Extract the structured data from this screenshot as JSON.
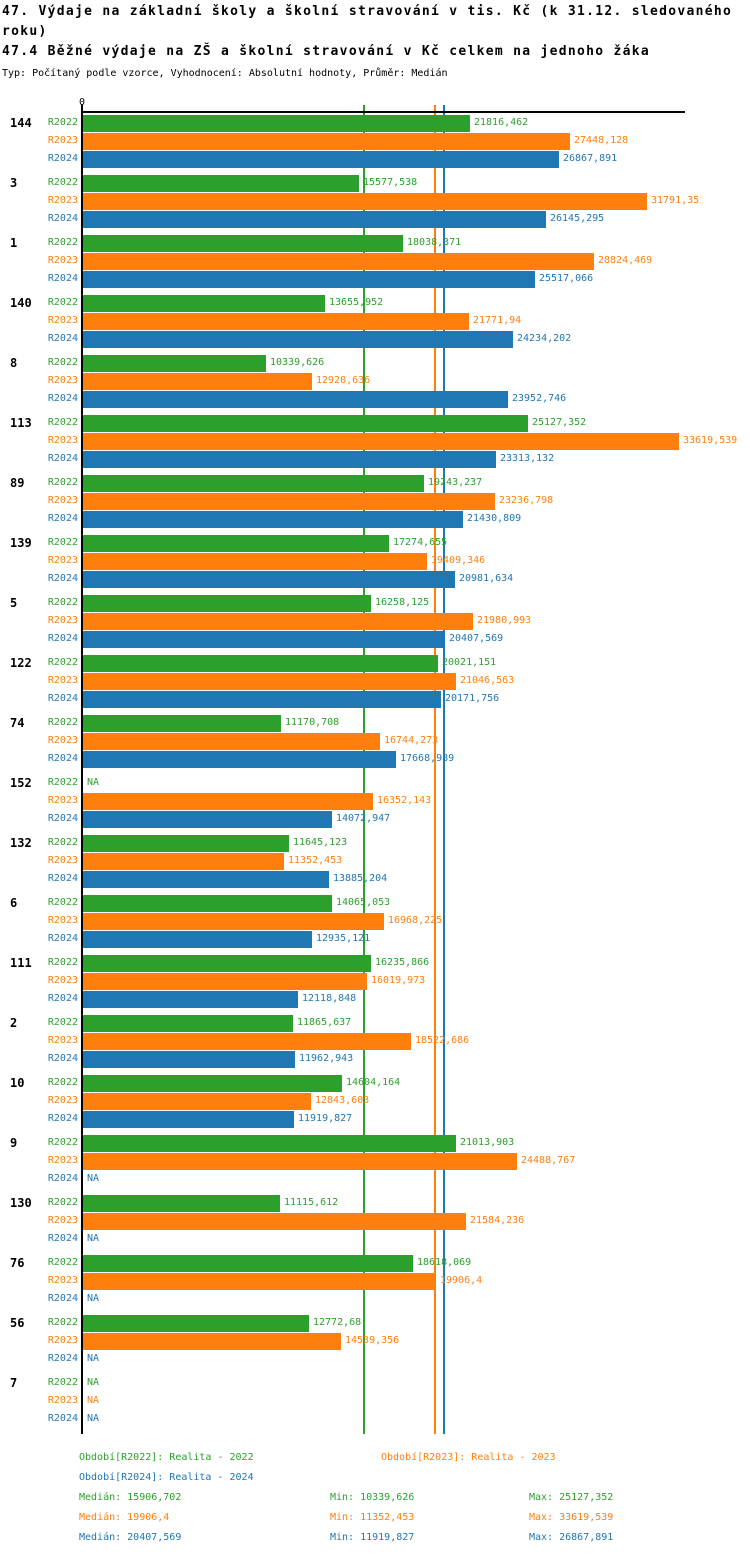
{
  "chart_data": {
    "type": "bar",
    "orientation": "horizontal",
    "title": "47. Výdaje na základní školy a školní stravování v tis. Kč (k 31.12. sledovaného roku)",
    "subtitle": "47.4 Běžné výdaje na ZŠ a školní stravování v Kč celkem na jednoho žáka",
    "meta": "Typ: Počítaný podle vzorce, Vyhodnocení: Absolutní hodnoty, Průměr: Medián",
    "na_text": "NA",
    "x_axis": {
      "zero_label": "0",
      "min": 0,
      "max": 33619.539,
      "grid": false
    },
    "legend_position": "bottom",
    "series": [
      {
        "name": "R2022",
        "color": "#2ca02c",
        "median": 15906.702,
        "min": 10339.626,
        "max": 25127.352
      },
      {
        "name": "R2023",
        "color": "#ff7f0e",
        "median": 19906.4,
        "min": 11352.453,
        "max": 33619.539
      },
      {
        "name": "R2024",
        "color": "#1f77b4",
        "median": 20407.569,
        "min": 11919.827,
        "max": 26867.891
      }
    ],
    "groups": [
      {
        "label": "144",
        "values": [
          "21816,462",
          "27448,128",
          "26867,891"
        ]
      },
      {
        "label": "3",
        "values": [
          "15577,538",
          "31791,35",
          "26145,295"
        ]
      },
      {
        "label": "1",
        "values": [
          "18038,371",
          "28824,469",
          "25517,066"
        ]
      },
      {
        "label": "140",
        "values": [
          "13655,952",
          "21771,94",
          "24234,202"
        ]
      },
      {
        "label": "8",
        "values": [
          "10339,626",
          "12920,636",
          "23952,746"
        ]
      },
      {
        "label": "113",
        "values": [
          "25127,352",
          "33619,539",
          "23313,132"
        ]
      },
      {
        "label": "89",
        "values": [
          "19243,237",
          "23236,798",
          "21430,809"
        ]
      },
      {
        "label": "139",
        "values": [
          "17274,655",
          "19409,346",
          "20981,634"
        ]
      },
      {
        "label": "5",
        "values": [
          "16258,125",
          "21980,993",
          "20407,569"
        ]
      },
      {
        "label": "122",
        "values": [
          "20021,151",
          "21046,563",
          "20171,756"
        ]
      },
      {
        "label": "74",
        "values": [
          "11170,708",
          "16744,273",
          "17668,989"
        ]
      },
      {
        "label": "152",
        "values": [
          "NA",
          "16352,143",
          "14072,947"
        ]
      },
      {
        "label": "132",
        "values": [
          "11645,123",
          "11352,453",
          "13885,204"
        ]
      },
      {
        "label": "6",
        "values": [
          "14065,053",
          "16968,225",
          "12935,121"
        ]
      },
      {
        "label": "111",
        "values": [
          "16235,866",
          "16019,973",
          "12118,848"
        ]
      },
      {
        "label": "2",
        "values": [
          "11865,637",
          "18522,686",
          "11962,943"
        ]
      },
      {
        "label": "10",
        "values": [
          "14604,164",
          "12843,603",
          "11919,827"
        ]
      },
      {
        "label": "9",
        "values": [
          "21013,903",
          "24488,767",
          "NA"
        ]
      },
      {
        "label": "130",
        "values": [
          "11115,612",
          "21584,236",
          "NA"
        ]
      },
      {
        "label": "76",
        "values": [
          "18618,069",
          "19906,4",
          "NA"
        ]
      },
      {
        "label": "56",
        "values": [
          "12772,68",
          "14539,356",
          "NA"
        ]
      },
      {
        "label": "7",
        "values": [
          "NA",
          "NA",
          "NA"
        ]
      }
    ]
  },
  "footer": {
    "legend": [
      {
        "label": "Období[R2022]: Realita - 2022"
      },
      {
        "label": "Období[R2023]: Realita - 2023"
      },
      {
        "label": "Období[R2024]: Realita - 2024"
      }
    ],
    "stats": [
      {
        "median": "Medián: 15906,702",
        "min": "Min: 10339,626",
        "max": "Max: 25127,352"
      },
      {
        "median": "Medián: 19906,4",
        "min": "Min: 11352,453",
        "max": "Max: 33619,539"
      },
      {
        "median": "Medián: 20407,569",
        "min": "Min: 11919,827",
        "max": "Max: 26867,891"
      }
    ]
  }
}
